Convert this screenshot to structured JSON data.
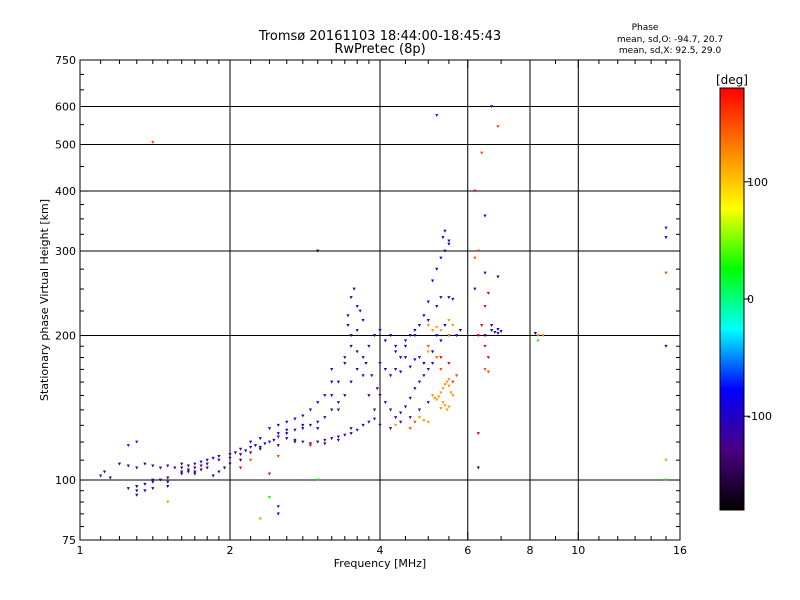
{
  "header": {
    "title_line1": "Tromsø 20161103 18:44:00-18:45:43",
    "title_line2": "RwPretec (8p)",
    "phase_title": "Phase",
    "phase_o": "mean, sd,O: -94.7, 20.7",
    "phase_x": "mean, sd,X:  92.5, 29.0"
  },
  "chart_data": {
    "type": "scatter",
    "xlabel": "Frequency [MHz]",
    "ylabel": "Stationary phase Virtual Height [km]",
    "x_scale": "log",
    "y_scale": "log",
    "xlim": [
      1,
      16
    ],
    "ylim": [
      75,
      750
    ],
    "x_ticks": [
      {
        "value": 1,
        "label": "1"
      },
      {
        "value": 2,
        "label": "2"
      },
      {
        "value": 4,
        "label": "4"
      },
      {
        "value": 6,
        "label": "6"
      },
      {
        "value": 8,
        "label": "8"
      },
      {
        "value": 10,
        "label": "10"
      },
      {
        "value": 16,
        "label": "16"
      }
    ],
    "x_grid": [
      2,
      4,
      6,
      8,
      10
    ],
    "y_ticks": [
      75,
      100,
      200,
      300,
      400,
      500,
      600,
      750
    ],
    "y_grid": [
      100,
      200,
      300,
      400,
      500,
      600
    ],
    "grid": true,
    "colorbar": {
      "label": "[deg]",
      "min": -180,
      "max": 180,
      "ticks": [
        100,
        0,
        -100
      ],
      "colors": [
        "#000000",
        "#4b0082",
        "#0000ff",
        "#00ffff",
        "#00ff00",
        "#ffff00",
        "#ff8000",
        "#ff0000"
      ]
    },
    "series": [
      {
        "phase": -110,
        "points": [
          [
            1.1,
            102
          ],
          [
            1.12,
            104
          ],
          [
            1.15,
            101
          ],
          [
            1.2,
            108
          ],
          [
            1.25,
            107
          ],
          [
            1.3,
            106
          ],
          [
            1.35,
            108
          ],
          [
            1.4,
            107
          ],
          [
            1.45,
            106
          ],
          [
            1.5,
            107
          ],
          [
            1.55,
            106
          ],
          [
            1.6,
            108
          ],
          [
            1.65,
            107
          ],
          [
            1.7,
            108
          ],
          [
            1.75,
            109
          ],
          [
            1.8,
            110
          ],
          [
            1.85,
            111
          ],
          [
            1.9,
            112
          ],
          [
            2.0,
            113
          ],
          [
            2.05,
            114
          ],
          [
            2.1,
            116
          ],
          [
            2.15,
            115
          ],
          [
            2.2,
            117
          ],
          [
            2.25,
            118
          ],
          [
            2.3,
            117
          ],
          [
            2.35,
            119
          ],
          [
            2.4,
            120
          ],
          [
            2.45,
            121
          ],
          [
            2.5,
            123
          ],
          [
            2.6,
            125
          ],
          [
            2.7,
            127
          ],
          [
            2.8,
            128
          ],
          [
            2.9,
            130
          ],
          [
            3.0,
            132
          ],
          [
            3.1,
            135
          ],
          [
            3.2,
            140
          ],
          [
            3.3,
            145
          ],
          [
            3.4,
            150
          ],
          [
            3.5,
            160
          ],
          [
            3.6,
            170
          ],
          [
            3.7,
            180
          ],
          [
            3.8,
            190
          ],
          [
            3.9,
            200
          ],
          [
            3.2,
            150
          ],
          [
            3.3,
            160
          ],
          [
            3.4,
            175
          ],
          [
            3.5,
            190
          ],
          [
            3.6,
            205
          ],
          [
            3.7,
            215
          ],
          [
            3.6,
            230
          ],
          [
            3.5,
            240
          ],
          [
            3.55,
            250
          ],
          [
            3.45,
            220
          ],
          [
            3.75,
            175
          ],
          [
            3.85,
            165
          ],
          [
            3.95,
            155
          ],
          [
            4.0,
            150
          ],
          [
            4.1,
            145
          ],
          [
            4.2,
            140
          ],
          [
            4.3,
            135
          ],
          [
            4.4,
            138
          ],
          [
            4.5,
            142
          ],
          [
            4.6,
            148
          ],
          [
            4.7,
            155
          ],
          [
            4.8,
            160
          ],
          [
            4.9,
            165
          ],
          [
            5.0,
            170
          ],
          [
            5.1,
            175
          ],
          [
            5.2,
            180
          ],
          [
            4.3,
            190
          ],
          [
            4.5,
            195
          ],
          [
            4.7,
            200
          ],
          [
            5.0,
            215
          ],
          [
            5.2,
            230
          ],
          [
            5.3,
            240
          ],
          [
            2.6,
            122
          ],
          [
            2.7,
            121
          ],
          [
            2.8,
            120
          ],
          [
            2.9,
            119
          ],
          [
            3.0,
            120
          ],
          [
            3.1,
            121
          ],
          [
            3.2,
            122
          ],
          [
            3.3,
            123
          ],
          [
            3.4,
            124
          ],
          [
            3.5,
            125
          ],
          [
            3.6,
            127
          ],
          [
            3.7,
            130
          ],
          [
            3.8,
            132
          ],
          [
            3.9,
            134
          ],
          [
            1.3,
            97
          ],
          [
            1.35,
            98
          ],
          [
            1.4,
            99
          ],
          [
            1.45,
            100
          ],
          [
            1.5,
            101
          ],
          [
            1.6,
            103
          ],
          [
            1.7,
            104
          ],
          [
            5.5,
            240
          ],
          [
            5.6,
            238
          ],
          [
            6.8,
            203
          ],
          [
            7.0,
            204
          ],
          [
            6.9,
            202
          ]
        ]
      },
      {
        "phase": -125,
        "points": [
          [
            1.6,
            104
          ],
          [
            1.65,
            105
          ],
          [
            1.7,
            106
          ],
          [
            1.75,
            107
          ],
          [
            1.8,
            108
          ],
          [
            1.9,
            110
          ],
          [
            2.0,
            111
          ],
          [
            2.1,
            113
          ],
          [
            2.2,
            114
          ],
          [
            2.3,
            116
          ],
          [
            2.5,
            118
          ],
          [
            2.7,
            120
          ],
          [
            2.9,
            118
          ],
          [
            3.1,
            119
          ],
          [
            3.3,
            121
          ],
          [
            3.5,
            128
          ],
          [
            3.3,
            140
          ],
          [
            3.4,
            180
          ],
          [
            3.5,
            200
          ],
          [
            3.6,
            185
          ],
          [
            3.7,
            165
          ],
          [
            3.8,
            150
          ],
          [
            3.9,
            140
          ],
          [
            4.0,
            130
          ],
          [
            4.2,
            128
          ],
          [
            4.4,
            132
          ],
          [
            4.6,
            135
          ],
          [
            4.8,
            140
          ],
          [
            5.0,
            145
          ],
          [
            1.25,
            96
          ],
          [
            1.3,
            97
          ],
          [
            1.4,
            100
          ],
          [
            1.5,
            99
          ],
          [
            3.2,
            170
          ],
          [
            3.45,
            210
          ],
          [
            3.65,
            225
          ]
        ]
      },
      {
        "phase": -95,
        "points": [
          [
            2.4,
            128
          ],
          [
            2.5,
            130
          ],
          [
            2.6,
            132
          ],
          [
            2.7,
            134
          ],
          [
            2.8,
            136
          ],
          [
            2.9,
            140
          ],
          [
            3.0,
            145
          ],
          [
            3.1,
            150
          ],
          [
            3.2,
            160
          ],
          [
            4.0,
            175
          ],
          [
            4.1,
            170
          ],
          [
            4.2,
            165
          ],
          [
            4.3,
            170
          ],
          [
            4.4,
            180
          ],
          [
            4.5,
            190
          ],
          [
            4.6,
            200
          ],
          [
            4.7,
            205
          ],
          [
            4.8,
            210
          ],
          [
            4.9,
            220
          ],
          [
            5.0,
            235
          ],
          [
            5.1,
            260
          ],
          [
            5.2,
            275
          ],
          [
            5.3,
            290
          ],
          [
            5.4,
            300
          ],
          [
            5.5,
            310
          ],
          [
            5.35,
            320
          ],
          [
            5.4,
            330
          ],
          [
            5.5,
            315
          ],
          [
            4.8,
            180
          ],
          [
            4.6,
            172
          ],
          [
            4.4,
            168
          ],
          [
            5.7,
            200
          ],
          [
            5.8,
            205
          ],
          [
            6.2,
            250
          ],
          [
            6.5,
            270
          ]
        ]
      },
      {
        "phase": -80,
        "points": [
          [
            2.2,
            120
          ],
          [
            2.3,
            122
          ],
          [
            2.5,
            125
          ],
          [
            2.6,
            127
          ],
          [
            2.8,
            130
          ],
          [
            3.0,
            128
          ],
          [
            4.0,
            205
          ],
          [
            4.1,
            195
          ],
          [
            4.2,
            200
          ],
          [
            4.3,
            185
          ],
          [
            4.5,
            180
          ],
          [
            4.7,
            178
          ],
          [
            4.9,
            175
          ],
          [
            5.1,
            185
          ],
          [
            5.3,
            195
          ],
          [
            5.5,
            200
          ],
          [
            5.4,
            210
          ],
          [
            5.2,
            200
          ],
          [
            1.3,
            93
          ],
          [
            1.35,
            95
          ],
          [
            2.5,
            85
          ],
          [
            6.5,
            355
          ],
          [
            6.7,
            205
          ],
          [
            6.9,
            206
          ],
          [
            15.0,
            190
          ],
          [
            15.0,
            320
          ]
        ]
      },
      {
        "phase": 120,
        "points": [
          [
            5.1,
            150
          ],
          [
            5.15,
            148
          ],
          [
            5.2,
            147
          ],
          [
            5.25,
            149
          ],
          [
            5.3,
            152
          ],
          [
            5.35,
            155
          ],
          [
            5.4,
            158
          ],
          [
            5.45,
            160
          ],
          [
            5.5,
            162
          ],
          [
            5.6,
            160
          ],
          [
            5.5,
            157
          ],
          [
            5.55,
            152
          ],
          [
            5.6,
            150
          ],
          [
            5.35,
            145
          ],
          [
            5.4,
            143
          ],
          [
            5.5,
            142
          ],
          [
            5.45,
            140
          ],
          [
            5.3,
            141
          ],
          [
            4.8,
            135
          ],
          [
            4.9,
            133
          ],
          [
            5.0,
            132
          ],
          [
            5.0,
            210
          ],
          [
            5.1,
            205
          ],
          [
            5.2,
            208
          ],
          [
            5.3,
            205
          ],
          [
            5.5,
            200
          ],
          [
            5.6,
            210
          ],
          [
            5.5,
            215
          ],
          [
            5.2,
            180
          ],
          [
            5.0,
            185
          ],
          [
            1.5,
            90
          ],
          [
            2.3,
            83
          ],
          [
            4.3,
            130
          ],
          [
            8.5,
            200
          ],
          [
            8.3,
            200
          ],
          [
            15.0,
            110
          ]
        ]
      },
      {
        "phase": 150,
        "points": [
          [
            5.0,
            190
          ],
          [
            5.3,
            170
          ],
          [
            5.6,
            160
          ],
          [
            5.7,
            165
          ],
          [
            6.3,
            300
          ],
          [
            6.2,
            290
          ],
          [
            6.5,
            170
          ],
          [
            6.6,
            168
          ],
          [
            4.6,
            128
          ],
          [
            4.7,
            132
          ],
          [
            2.2,
            110
          ],
          [
            2.5,
            112
          ],
          [
            2.9,
            118
          ],
          [
            1.4,
            505
          ],
          [
            6.4,
            480
          ],
          [
            6.9,
            545
          ],
          [
            15.0,
            270
          ]
        ]
      },
      {
        "phase": 30,
        "points": [
          [
            2.4,
            92
          ],
          [
            3.0,
            100
          ],
          [
            8.3,
            195
          ],
          [
            15.0,
            100
          ]
        ]
      },
      {
        "phase": 180,
        "points": [
          [
            5.3,
            180
          ],
          [
            5.5,
            175
          ],
          [
            6.2,
            400
          ],
          [
            6.3,
            200
          ],
          [
            6.4,
            210
          ],
          [
            6.5,
            230
          ],
          [
            6.6,
            245
          ],
          [
            6.5,
            190
          ],
          [
            6.6,
            180
          ],
          [
            2.1,
            106
          ],
          [
            2.4,
            103
          ],
          [
            6.3,
            125
          ]
        ]
      },
      {
        "phase": -140,
        "points": [
          [
            1.6,
            106
          ],
          [
            1.65,
            104
          ],
          [
            1.7,
            103
          ],
          [
            1.75,
            105
          ],
          [
            1.8,
            106
          ],
          [
            1.85,
            102
          ],
          [
            1.9,
            104
          ],
          [
            1.95,
            106
          ],
          [
            2.0,
            108
          ],
          [
            2.1,
            110
          ],
          [
            1.3,
            95
          ],
          [
            1.4,
            96
          ],
          [
            1.5,
            97
          ],
          [
            3.0,
            300
          ],
          [
            6.3,
            106
          ],
          [
            6.5,
            200
          ],
          [
            6.7,
            210
          ],
          [
            6.9,
            265
          ],
          [
            8.2,
            202
          ]
        ]
      },
      {
        "phase": -70,
        "points": [
          [
            5.2,
            575
          ],
          [
            6.7,
            600
          ],
          [
            1.25,
            118
          ],
          [
            1.3,
            120
          ],
          [
            2.5,
            88
          ],
          [
            15.0,
            335
          ]
        ]
      }
    ]
  }
}
